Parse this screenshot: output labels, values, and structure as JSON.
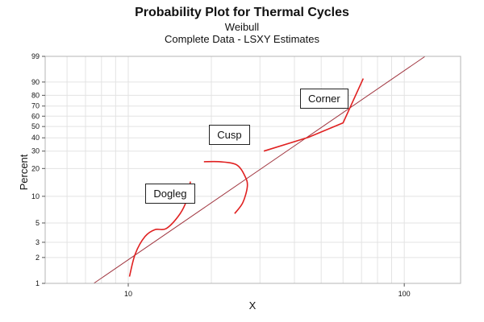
{
  "chart_data": {
    "type": "line",
    "title": "Probability Plot for Thermal Cycles",
    "subtitle": [
      "Weibull",
      "Complete Data - LSXY Estimates"
    ],
    "xlabel": "X",
    "ylabel": "Percent",
    "x_scale": "log",
    "y_scale": "weibull-probability",
    "xlim": [
      5,
      160
    ],
    "ylim": [
      1,
      99
    ],
    "x_ticks": [
      10,
      100
    ],
    "y_ticks": [
      1,
      2,
      3,
      5,
      10,
      20,
      30,
      40,
      50,
      60,
      70,
      80,
      90,
      99
    ],
    "grid": true,
    "fit_line": {
      "x": [
        7.5,
        119
      ],
      "y": [
        1,
        99
      ],
      "color": "#a0353f"
    },
    "series": [
      {
        "values": [
          [
            10.1,
            1.2
          ],
          [
            10.6,
            2.2
          ],
          [
            11.5,
            3.5
          ],
          [
            12.5,
            4.2
          ],
          [
            13.7,
            4.3
          ],
          [
            15.2,
            6.0
          ],
          [
            16.2,
            8.7
          ],
          [
            16.8,
            14.5
          ]
        ],
        "color": "#e02020"
      },
      {
        "values": [
          [
            18.8,
            23.5
          ],
          [
            21.5,
            23.5
          ],
          [
            24.7,
            21.8
          ],
          [
            26.5,
            16.5
          ],
          [
            27.0,
            12.8
          ],
          [
            26.0,
            8.5
          ],
          [
            24.3,
            6.4
          ]
        ],
        "color": "#e02020"
      },
      {
        "values": [
          [
            31,
            30
          ],
          [
            45,
            40.5
          ],
          [
            60,
            53.5
          ],
          [
            71,
            92
          ]
        ],
        "color": "#e02020"
      }
    ],
    "annotations": [
      {
        "text": "Dogleg",
        "x": 11.7,
        "y": 10.5
      },
      {
        "text": "Cusp",
        "x": 19.9,
        "y": 42
      },
      {
        "text": "Corner",
        "x": 42.5,
        "y": 77
      }
    ]
  }
}
